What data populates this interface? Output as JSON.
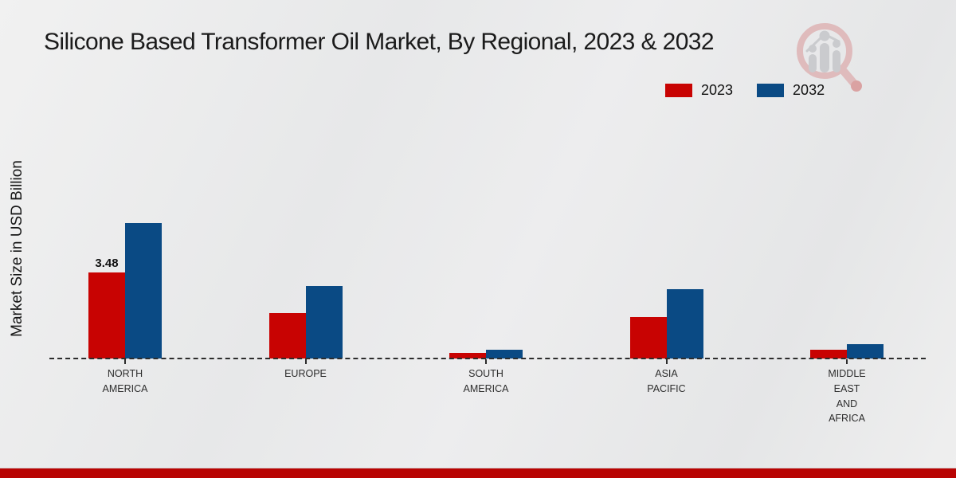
{
  "page": {
    "title": "Silicone Based Transformer Oil Market, By Regional, 2023 & 2032",
    "y_axis_label": "Market Size in USD Billion"
  },
  "legend": {
    "items": [
      {
        "label": "2023",
        "color": "#c80302"
      },
      {
        "label": "2032",
        "color": "#0a4a84"
      }
    ]
  },
  "colors": {
    "bar_2023": "#c80302",
    "bar_2032": "#0a4a84",
    "footer_strip": "#b80403",
    "axis": "#2c2c2c"
  },
  "chart_data": {
    "type": "bar",
    "title": "Silicone Based Transformer Oil Market, By Regional, 2023 & 2032",
    "xlabel": "",
    "ylabel": "Market Size in USD Billion",
    "categories": [
      "NORTH AMERICA",
      "EUROPE",
      "SOUTH AMERICA",
      "ASIA PACIFIC",
      "MIDDLE EAST AND AFRICA"
    ],
    "category_display": [
      "NORTH\nAMERICA",
      "EUROPE",
      "SOUTH\nAMERICA",
      "ASIA\nPACIFIC",
      "MIDDLE\nEAST\nAND\nAFRICA"
    ],
    "series": [
      {
        "name": "2023",
        "color": "#c80302",
        "values": [
          3.48,
          1.85,
          0.23,
          1.68,
          0.36
        ]
      },
      {
        "name": "2032",
        "color": "#0a4a84",
        "values": [
          5.5,
          2.95,
          0.36,
          2.8,
          0.58
        ]
      }
    ],
    "annotations": [
      {
        "text": "3.48",
        "series_index": 0,
        "category_index": 0
      }
    ],
    "ylim": [
      0,
      6
    ],
    "baseline_style": "dashed",
    "grid": false,
    "legend_position": "top-right"
  }
}
